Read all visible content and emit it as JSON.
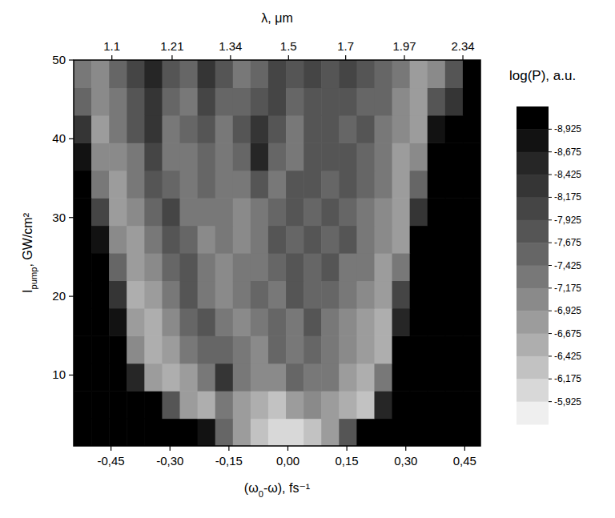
{
  "chart_data": {
    "type": "heatmap",
    "x_label": {
      "text": "(ω",
      "sub": "0",
      "suffix": "-ω), fs⁻¹"
    },
    "y_label": {
      "text": "I",
      "sub": "pump",
      "suffix": ", GW/cm²"
    },
    "x2_label": "λ, μm",
    "xlim": [
      -0.545,
      0.49
    ],
    "ylim": [
      1,
      50
    ],
    "x2lim": [
      1.04,
      2.48
    ],
    "xticks": [
      {
        "value": -0.45,
        "label": "-0,45"
      },
      {
        "value": -0.3,
        "label": "-0,30"
      },
      {
        "value": -0.15,
        "label": "-0,15"
      },
      {
        "value": 0,
        "label": "0,00"
      },
      {
        "value": 0.15,
        "label": "0,15"
      },
      {
        "value": 0.3,
        "label": "0,30"
      },
      {
        "value": 0.45,
        "label": "0,45"
      }
    ],
    "yticks": [
      10,
      20,
      30,
      40,
      50
    ],
    "x2ticks": [
      1.1,
      1.21,
      1.34,
      1.5,
      1.7,
      1.97,
      2.34
    ],
    "x_bins": [
      -0.545,
      -0.5,
      -0.455,
      -0.41,
      -0.365,
      -0.32,
      -0.275,
      -0.23,
      -0.185,
      -0.14,
      -0.095,
      -0.05,
      -0.005,
      0.04,
      0.085,
      0.13,
      0.175,
      0.22,
      0.265,
      0.31,
      0.355,
      0.4,
      0.445,
      0.49
    ],
    "y_bins": [
      1,
      4.5,
      8,
      11.5,
      15,
      18.5,
      22,
      25.5,
      29,
      32.5,
      36,
      39.5,
      43,
      46.5,
      50
    ],
    "cells": [
      [
        -9.2,
        -9.2,
        -9.2,
        -9.2,
        -9.2,
        -9.2,
        -9.2,
        -8.7,
        -7.6,
        -6.9,
        -6.4,
        -6.0,
        -6.0,
        -6.3,
        -6.8,
        -7.8,
        -9.2,
        -9.2,
        -9.2,
        -9.2,
        -9.2,
        -9.2,
        -9.2
      ],
      [
        -9.2,
        -9.2,
        -9.2,
        -9.2,
        -9.2,
        -7.8,
        -6.9,
        -6.6,
        -7.2,
        -6.8,
        -6.5,
        -6.3,
        -6.9,
        -7.0,
        -6.8,
        -6.5,
        -6.4,
        -8.5,
        -9.2,
        -9.2,
        -9.2,
        -9.2,
        -9.2
      ],
      [
        -9.2,
        -9.2,
        -9.2,
        -8.6,
        -6.8,
        -6.5,
        -6.8,
        -7.2,
        -8.2,
        -7.4,
        -7.0,
        -7.1,
        -7.6,
        -7.3,
        -7.2,
        -6.8,
        -6.5,
        -7.2,
        -9.2,
        -9.2,
        -9.2,
        -9.2,
        -9.2
      ],
      [
        -9.2,
        -9.2,
        -9.0,
        -7.0,
        -6.5,
        -6.8,
        -7.3,
        -7.6,
        -7.5,
        -7.2,
        -7.1,
        -7.5,
        -7.4,
        -7.6,
        -7.3,
        -7.0,
        -6.7,
        -6.6,
        -9.0,
        -9.2,
        -9.2,
        -9.2,
        -9.2
      ],
      [
        -9.2,
        -9.2,
        -8.9,
        -6.7,
        -6.6,
        -7.0,
        -7.5,
        -7.8,
        -7.3,
        -7.1,
        -7.4,
        -7.6,
        -7.3,
        -7.7,
        -7.4,
        -7.1,
        -6.9,
        -6.6,
        -8.6,
        -9.2,
        -9.2,
        -9.2,
        -9.2
      ],
      [
        -9.2,
        -9.2,
        -8.4,
        -6.6,
        -6.8,
        -7.3,
        -7.8,
        -7.4,
        -7.0,
        -7.3,
        -7.6,
        -7.3,
        -7.8,
        -7.5,
        -7.6,
        -7.3,
        -7.1,
        -6.7,
        -8.0,
        -9.2,
        -9.2,
        -9.2,
        -9.2
      ],
      [
        -9.2,
        -9.1,
        -7.6,
        -6.7,
        -7.0,
        -7.6,
        -7.9,
        -7.2,
        -7.0,
        -7.4,
        -7.2,
        -7.6,
        -7.9,
        -7.5,
        -7.7,
        -7.4,
        -7.2,
        -6.9,
        -7.2,
        -9.2,
        -9.2,
        -9.2,
        -9.2
      ],
      [
        -9.2,
        -8.8,
        -7.0,
        -6.8,
        -7.2,
        -7.9,
        -7.6,
        -7.1,
        -7.3,
        -7.1,
        -7.3,
        -7.7,
        -7.6,
        -7.9,
        -7.5,
        -7.7,
        -7.3,
        -7.0,
        -6.8,
        -9.0,
        -9.2,
        -9.2,
        -9.2
      ],
      [
        -9.2,
        -8.0,
        -6.8,
        -7.0,
        -7.6,
        -8.0,
        -7.3,
        -7.2,
        -7.4,
        -7.0,
        -7.4,
        -7.5,
        -7.8,
        -7.6,
        -7.9,
        -7.6,
        -7.4,
        -7.1,
        -6.7,
        -8.4,
        -9.2,
        -9.2,
        -9.2
      ],
      [
        -9.1,
        -7.3,
        -6.8,
        -7.2,
        -7.9,
        -7.6,
        -7.2,
        -7.5,
        -7.3,
        -7.2,
        -7.9,
        -7.4,
        -7.7,
        -7.9,
        -7.6,
        -7.8,
        -7.5,
        -7.2,
        -6.8,
        -7.6,
        -9.2,
        -9.2,
        -9.2
      ],
      [
        -8.8,
        -7.0,
        -7.0,
        -7.4,
        -8.1,
        -7.4,
        -7.3,
        -7.6,
        -7.2,
        -7.6,
        -8.6,
        -7.6,
        -7.4,
        -7.8,
        -7.7,
        -7.9,
        -7.6,
        -7.3,
        -6.9,
        -7.0,
        -9.1,
        -9.2,
        -9.2
      ],
      [
        -8.2,
        -6.9,
        -7.2,
        -7.7,
        -8.2,
        -7.3,
        -7.5,
        -7.8,
        -7.3,
        -7.8,
        -8.4,
        -7.8,
        -7.3,
        -7.7,
        -7.9,
        -7.6,
        -7.8,
        -7.4,
        -7.0,
        -6.8,
        -8.7,
        -9.2,
        -9.2
      ],
      [
        -7.6,
        -7.0,
        -7.4,
        -7.9,
        -8.3,
        -7.6,
        -7.4,
        -8.0,
        -7.6,
        -7.5,
        -7.7,
        -8.0,
        -7.5,
        -7.9,
        -7.7,
        -7.9,
        -7.6,
        -7.5,
        -7.1,
        -6.8,
        -7.8,
        -8.2,
        -9.2
      ],
      [
        -7.2,
        -7.1,
        -7.6,
        -8.1,
        -8.5,
        -7.8,
        -7.5,
        -8.2,
        -7.8,
        -7.4,
        -7.6,
        -8.1,
        -7.7,
        -8.0,
        -7.8,
        -8.1,
        -7.7,
        -7.6,
        -7.2,
        -6.9,
        -7.1,
        -7.8,
        -9.1
      ]
    ],
    "colorbar": {
      "title": "log(P), a.u.",
      "ticks": [
        {
          "value": -8.925,
          "label": "-8,925"
        },
        {
          "value": -8.675,
          "label": "-8,675"
        },
        {
          "value": -8.425,
          "label": "-8,425"
        },
        {
          "value": -8.175,
          "label": "-8,175"
        },
        {
          "value": -7.925,
          "label": "-7,925"
        },
        {
          "value": -7.675,
          "label": "-7,675"
        },
        {
          "value": -7.425,
          "label": "-7,425"
        },
        {
          "value": -7.175,
          "label": "-7,175"
        },
        {
          "value": -6.925,
          "label": "-6,925"
        },
        {
          "value": -6.675,
          "label": "-6,675"
        },
        {
          "value": -6.425,
          "label": "-6,425"
        },
        {
          "value": -6.175,
          "label": "-6,175"
        },
        {
          "value": -5.925,
          "label": "-5,925"
        }
      ],
      "colors": [
        "#000000",
        "#121212",
        "#262626",
        "#353535",
        "#454545",
        "#555555",
        "#666666",
        "#787878",
        "#8a8a8a",
        "#9c9c9c",
        "#aeaeae",
        "#c2c2c2",
        "#d8d8d8",
        "#efefef"
      ]
    }
  }
}
